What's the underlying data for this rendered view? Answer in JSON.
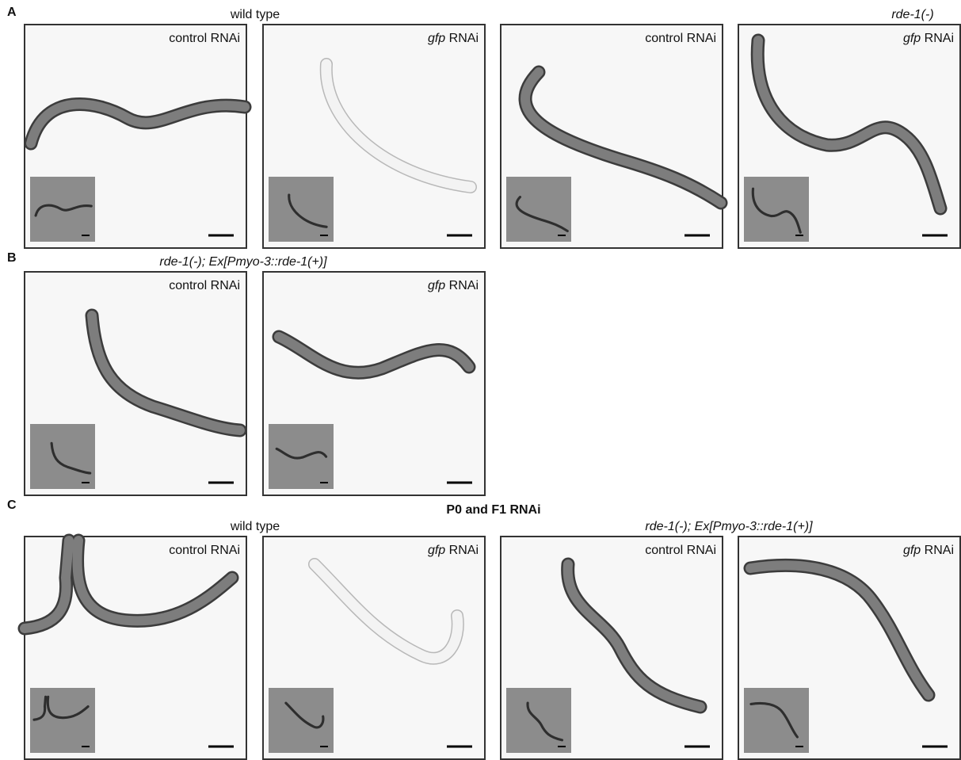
{
  "figure": {
    "panels": [
      {
        "label": "A",
        "groups": [
          {
            "title": "wild type",
            "italic": false,
            "images": [
              {
                "treatment": "control RNAi"
              },
              {
                "treatment_gene": "gfp",
                "treatment": "RNAi"
              }
            ]
          },
          {
            "title": "rde-1(-)",
            "italic": true,
            "images": [
              {
                "treatment": "control RNAi"
              },
              {
                "treatment_gene": "gfp",
                "treatment": "RNAi"
              }
            ]
          }
        ]
      },
      {
        "label": "B",
        "groups": [
          {
            "title": "rde-1(-); Ex[Pmyo-3::rde-1(+)]",
            "italic": true,
            "images": [
              {
                "treatment": "control RNAi"
              },
              {
                "treatment_gene": "gfp",
                "treatment": "RNAi"
              }
            ]
          }
        ]
      },
      {
        "label": "C",
        "heading": "P0 and F1 RNAi",
        "groups": [
          {
            "title": "wild type",
            "italic": false,
            "images": [
              {
                "treatment": "control RNAi"
              },
              {
                "treatment_gene": "gfp",
                "treatment": "RNAi"
              }
            ]
          },
          {
            "title": "rde-1(-); Ex[Pmyo-3::rde-1(+)]",
            "italic": true,
            "images": [
              {
                "treatment": "control RNAi"
              },
              {
                "treatment_gene": "gfp",
                "treatment": "RNAi"
              }
            ]
          }
        ]
      }
    ]
  }
}
